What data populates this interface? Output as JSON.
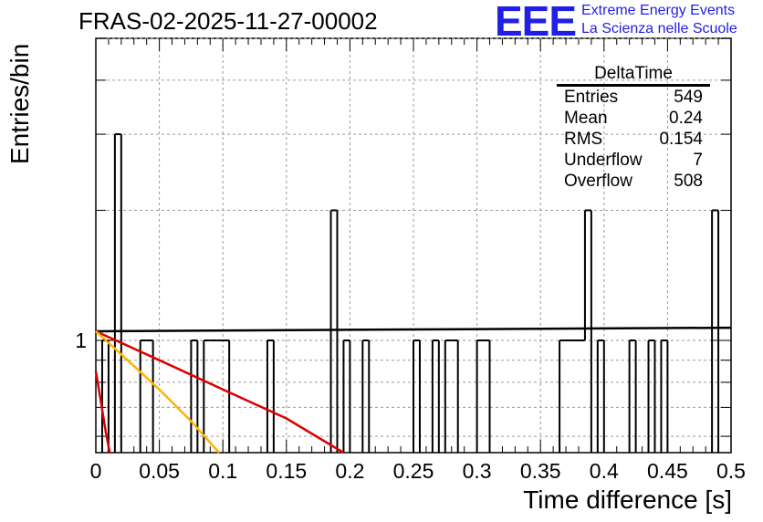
{
  "header": {
    "run_title": "FRAS-02-2025-11-27-00002",
    "logo_text": "EEE",
    "logo_line1": "Extreme Energy Events",
    "logo_line2": "La Scienza nelle Scuole"
  },
  "colors": {
    "logo": "#1f1fe6",
    "fit_main": "#000000",
    "fit_red": "#dd0000",
    "fit_orange": "#ffb300",
    "fit_red2": "#dd0000"
  },
  "stats_box": {
    "title": "DeltaTime",
    "rows": [
      {
        "label": "Entries",
        "value": "549"
      },
      {
        "label": "Mean",
        "value": "0.24"
      },
      {
        "label": "RMS",
        "value": "0.154"
      },
      {
        "label": "Underflow",
        "value": "7"
      },
      {
        "label": "Overflow",
        "value": "508"
      }
    ]
  },
  "chart_data": {
    "type": "histogram",
    "title": "FRAS-02-2025-11-27-00002",
    "xlabel": "Time difference [s]",
    "ylabel": "Entries/bin",
    "xlim": [
      0,
      0.5
    ],
    "ylim": [
      0.55,
      5
    ],
    "yscale": "log",
    "bin_width": 0.005,
    "x_ticks": [
      "0",
      "0.05",
      "0.1",
      "0.15",
      "0.2",
      "0.25",
      "0.3",
      "0.35",
      "0.4",
      "0.45",
      "0.5"
    ],
    "y_tick_labels": [
      "1"
    ],
    "grid": true,
    "bins": [
      {
        "x": 0.0,
        "count": 0
      },
      {
        "x": 0.005,
        "count": 1
      },
      {
        "x": 0.01,
        "count": 0
      },
      {
        "x": 0.015,
        "count": 3
      },
      {
        "x": 0.02,
        "count": 0
      },
      {
        "x": 0.035,
        "count": 1
      },
      {
        "x": 0.04,
        "count": 1
      },
      {
        "x": 0.045,
        "count": 0
      },
      {
        "x": 0.075,
        "count": 1
      },
      {
        "x": 0.08,
        "count": 0
      },
      {
        "x": 0.085,
        "count": 1
      },
      {
        "x": 0.09,
        "count": 1
      },
      {
        "x": 0.095,
        "count": 1
      },
      {
        "x": 0.1,
        "count": 1
      },
      {
        "x": 0.105,
        "count": 0
      },
      {
        "x": 0.135,
        "count": 1
      },
      {
        "x": 0.14,
        "count": 0
      },
      {
        "x": 0.185,
        "count": 2
      },
      {
        "x": 0.19,
        "count": 0
      },
      {
        "x": 0.195,
        "count": 1
      },
      {
        "x": 0.2,
        "count": 0
      },
      {
        "x": 0.21,
        "count": 1
      },
      {
        "x": 0.215,
        "count": 0
      },
      {
        "x": 0.25,
        "count": 1
      },
      {
        "x": 0.255,
        "count": 0
      },
      {
        "x": 0.265,
        "count": 1
      },
      {
        "x": 0.27,
        "count": 0
      },
      {
        "x": 0.275,
        "count": 1
      },
      {
        "x": 0.28,
        "count": 1
      },
      {
        "x": 0.285,
        "count": 0
      },
      {
        "x": 0.3,
        "count": 1
      },
      {
        "x": 0.305,
        "count": 1
      },
      {
        "x": 0.31,
        "count": 0
      },
      {
        "x": 0.365,
        "count": 1
      },
      {
        "x": 0.37,
        "count": 1
      },
      {
        "x": 0.375,
        "count": 1
      },
      {
        "x": 0.38,
        "count": 1
      },
      {
        "x": 0.385,
        "count": 2
      },
      {
        "x": 0.39,
        "count": 0
      },
      {
        "x": 0.395,
        "count": 1
      },
      {
        "x": 0.4,
        "count": 0
      },
      {
        "x": 0.42,
        "count": 1
      },
      {
        "x": 0.425,
        "count": 0
      },
      {
        "x": 0.435,
        "count": 1
      },
      {
        "x": 0.44,
        "count": 0
      },
      {
        "x": 0.445,
        "count": 1
      },
      {
        "x": 0.45,
        "count": 0
      },
      {
        "x": 0.485,
        "count": 2
      },
      {
        "x": 0.49,
        "count": 0
      },
      {
        "x": 0.495,
        "count": 0
      }
    ],
    "fits": [
      {
        "name": "fit-main",
        "color": "#000000",
        "x": [
          0,
          0.125,
          0.25,
          0.5
        ],
        "y": [
          1.05,
          1.055,
          1.06,
          1.07
        ]
      },
      {
        "name": "fit-red",
        "color": "#dd0000",
        "x": [
          0,
          0.05,
          0.1,
          0.15,
          0.195
        ],
        "y": [
          1.05,
          0.9,
          0.77,
          0.66,
          0.55
        ]
      },
      {
        "name": "fit-orange",
        "color": "#ffb300",
        "x": [
          0,
          0.025,
          0.05,
          0.075,
          0.097
        ],
        "y": [
          1.05,
          0.9,
          0.77,
          0.65,
          0.55
        ]
      },
      {
        "name": "fit-red-steep",
        "color": "#dd0000",
        "x": [
          0.0,
          0.004,
          0.008,
          0.011
        ],
        "y": [
          0.85,
          0.72,
          0.61,
          0.55
        ]
      }
    ]
  }
}
